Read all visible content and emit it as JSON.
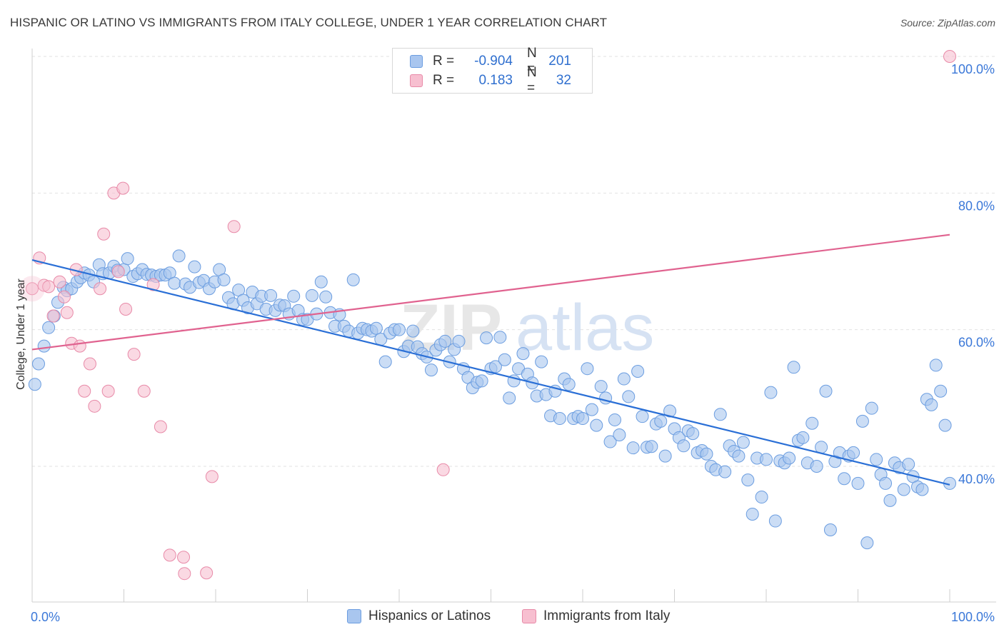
{
  "title": "HISPANIC OR LATINO VS IMMIGRANTS FROM ITALY COLLEGE, UNDER 1 YEAR CORRELATION CHART",
  "source": "Source: ZipAtlas.com",
  "watermark": {
    "part1": "ZIP",
    "part2": "atlas"
  },
  "legend_top": [
    {
      "label": "R =",
      "r": "-0.904",
      "n_label": "N =",
      "n": "201",
      "color": "#a9c6ef",
      "border": "#6b9de0"
    },
    {
      "label": "R =",
      "r": "0.183",
      "n_label": "N =",
      "n": "32",
      "color": "#f7bfd0",
      "border": "#e88aa8"
    }
  ],
  "legend_bottom": [
    {
      "label": "Hispanics or Latinos",
      "color": "#a9c6ef",
      "border": "#6b9de0"
    },
    {
      "label": "Immigrants from Italy",
      "color": "#f7bfd0",
      "border": "#e88aa8"
    }
  ],
  "chart_data": {
    "type": "scatter",
    "title": "HISPANIC OR LATINO VS IMMIGRANTS FROM ITALY COLLEGE, UNDER 1 YEAR CORRELATION CHART",
    "xlabel": "",
    "ylabel": "College, Under 1 year",
    "xlim": [
      0,
      100
    ],
    "ylim": [
      20,
      102
    ],
    "x_tick_labels": [
      "0.0%",
      "100.0%"
    ],
    "y_ticks": [
      40,
      60,
      80,
      100
    ],
    "y_tick_labels": [
      "40.0%",
      "60.0%",
      "80.0%",
      "100.0%"
    ],
    "grid": "horizontal dashed",
    "legend_position": "top-center",
    "series": [
      {
        "name": "Hispanics or Latinos",
        "color": "#6b9de0",
        "fill": "#a9c6ef",
        "trend": {
          "x": [
            0,
            100
          ],
          "y": [
            70.2,
            37.3
          ]
        },
        "points": [
          [
            0.3,
            52
          ],
          [
            0.7,
            55
          ],
          [
            1.3,
            57.6
          ],
          [
            1.8,
            60.3
          ],
          [
            2.4,
            62
          ],
          [
            2.8,
            64
          ],
          [
            3.4,
            66.2
          ],
          [
            3.8,
            65.7
          ],
          [
            4.3,
            66
          ],
          [
            4.9,
            67
          ],
          [
            5.3,
            67.6
          ],
          [
            5.7,
            68.3
          ],
          [
            6.2,
            68
          ],
          [
            6.7,
            67
          ],
          [
            7.3,
            69.5
          ],
          [
            7.7,
            68.2
          ],
          [
            8.4,
            68.3
          ],
          [
            8.9,
            69.3
          ],
          [
            9.3,
            68.7
          ],
          [
            10,
            68.8
          ],
          [
            10.4,
            70.4
          ],
          [
            11,
            67.8
          ],
          [
            11.5,
            68.2
          ],
          [
            12,
            68.8
          ],
          [
            12.5,
            68.1
          ],
          [
            13,
            68
          ],
          [
            13.5,
            67.8
          ],
          [
            14,
            68
          ],
          [
            14.5,
            68
          ],
          [
            15,
            68.3
          ],
          [
            15.5,
            66.8
          ],
          [
            16,
            70.8
          ],
          [
            16.7,
            66.7
          ],
          [
            17.2,
            66.2
          ],
          [
            17.7,
            69.2
          ],
          [
            18.2,
            66.9
          ],
          [
            18.7,
            67.2
          ],
          [
            19.3,
            66
          ],
          [
            19.9,
            67
          ],
          [
            20.4,
            68.8
          ],
          [
            20.9,
            67.3
          ],
          [
            21.4,
            64.7
          ],
          [
            21.9,
            63.8
          ],
          [
            22.5,
            65.8
          ],
          [
            23,
            64.3
          ],
          [
            23.5,
            63.2
          ],
          [
            24,
            65.5
          ],
          [
            24.5,
            63.8
          ],
          [
            25,
            64.9
          ],
          [
            25.5,
            63
          ],
          [
            26,
            65
          ],
          [
            26.5,
            62.8
          ],
          [
            27,
            63.6
          ],
          [
            27.5,
            63.5
          ],
          [
            28,
            62.3
          ],
          [
            28.5,
            64.9
          ],
          [
            29,
            62.8
          ],
          [
            29.5,
            61.5
          ],
          [
            30,
            61.5
          ],
          [
            30.5,
            65
          ],
          [
            31,
            62.3
          ],
          [
            31.5,
            67
          ],
          [
            32,
            64.8
          ],
          [
            32.5,
            62.5
          ],
          [
            33,
            60.5
          ],
          [
            33.5,
            62.2
          ],
          [
            34,
            60.5
          ],
          [
            34.5,
            59.8
          ],
          [
            35,
            67.3
          ],
          [
            35.5,
            59.5
          ],
          [
            36,
            60.2
          ],
          [
            36.5,
            60
          ],
          [
            37,
            59.8
          ],
          [
            37.5,
            60.2
          ],
          [
            38,
            58.6
          ],
          [
            38.5,
            55.3
          ],
          [
            39,
            59.5
          ],
          [
            39.5,
            60
          ],
          [
            40,
            60
          ],
          [
            40.5,
            56.8
          ],
          [
            41,
            57.6
          ],
          [
            41.5,
            59.8
          ],
          [
            42,
            57.5
          ],
          [
            42.5,
            56.5
          ],
          [
            43,
            56
          ],
          [
            43.5,
            54.1
          ],
          [
            44,
            57
          ],
          [
            44.5,
            57.8
          ],
          [
            45,
            58.3
          ],
          [
            45.5,
            55.3
          ],
          [
            46,
            57.1
          ],
          [
            46.5,
            58.3
          ],
          [
            47,
            54.3
          ],
          [
            47.5,
            53
          ],
          [
            48,
            51.5
          ],
          [
            48.5,
            52.3
          ],
          [
            49,
            52.5
          ],
          [
            49.5,
            58.8
          ],
          [
            50,
            54.3
          ],
          [
            50.5,
            54.6
          ],
          [
            51,
            58.9
          ],
          [
            51.5,
            55.6
          ],
          [
            52,
            50
          ],
          [
            52.5,
            52.5
          ],
          [
            53,
            54.3
          ],
          [
            53.5,
            56.5
          ],
          [
            54,
            53.5
          ],
          [
            54.5,
            52.2
          ],
          [
            55,
            50.3
          ],
          [
            55.5,
            55.3
          ],
          [
            56,
            50.5
          ],
          [
            56.5,
            47.4
          ],
          [
            57,
            51
          ],
          [
            57.5,
            47
          ],
          [
            58,
            52.8
          ],
          [
            58.5,
            52
          ],
          [
            59,
            47
          ],
          [
            59.5,
            47.3
          ],
          [
            60,
            47
          ],
          [
            60.5,
            54.3
          ],
          [
            61,
            48.3
          ],
          [
            61.5,
            46
          ],
          [
            62,
            51.7
          ],
          [
            62.5,
            50
          ],
          [
            63,
            43.6
          ],
          [
            63.5,
            46.8
          ],
          [
            64,
            44.6
          ],
          [
            64.5,
            52.8
          ],
          [
            65,
            50.2
          ],
          [
            65.5,
            42.7
          ],
          [
            66,
            53.9
          ],
          [
            66.5,
            47.3
          ],
          [
            67,
            42.8
          ],
          [
            67.5,
            42.9
          ],
          [
            68,
            46.2
          ],
          [
            68.5,
            46.6
          ],
          [
            69,
            41.5
          ],
          [
            69.5,
            48.1
          ],
          [
            70,
            45.5
          ],
          [
            70.5,
            44.2
          ],
          [
            71,
            43
          ],
          [
            71.5,
            45.2
          ],
          [
            72,
            44.8
          ],
          [
            72.5,
            42
          ],
          [
            73,
            42.3
          ],
          [
            73.5,
            41.8
          ],
          [
            74,
            40
          ],
          [
            74.5,
            39.5
          ],
          [
            75,
            47.6
          ],
          [
            75.5,
            39.2
          ],
          [
            76,
            43
          ],
          [
            76.5,
            42.2
          ],
          [
            77,
            41.5
          ],
          [
            77.5,
            43.5
          ],
          [
            78,
            38
          ],
          [
            78.5,
            33
          ],
          [
            79,
            41.2
          ],
          [
            79.5,
            35.5
          ],
          [
            80,
            41
          ],
          [
            80.5,
            50.8
          ],
          [
            81,
            32
          ],
          [
            81.5,
            40.8
          ],
          [
            82,
            40.5
          ],
          [
            82.5,
            41.2
          ],
          [
            83,
            54.5
          ],
          [
            83.5,
            43.8
          ],
          [
            84,
            44.2
          ],
          [
            84.5,
            40.5
          ],
          [
            85,
            46.3
          ],
          [
            85.5,
            40
          ],
          [
            86,
            42.8
          ],
          [
            86.5,
            51
          ],
          [
            87,
            30.7
          ],
          [
            87.5,
            40.7
          ],
          [
            88,
            42
          ],
          [
            88.5,
            38.2
          ],
          [
            89,
            41.5
          ],
          [
            89.5,
            42
          ],
          [
            90,
            37.5
          ],
          [
            90.5,
            46.6
          ],
          [
            91,
            28.8
          ],
          [
            91.5,
            48.5
          ],
          [
            92,
            41
          ],
          [
            92.5,
            38.8
          ],
          [
            93,
            37.5
          ],
          [
            93.5,
            35
          ],
          [
            94,
            40.5
          ],
          [
            94.5,
            39.8
          ],
          [
            95,
            36.6
          ],
          [
            95.5,
            40.3
          ],
          [
            96,
            38.5
          ],
          [
            96.5,
            37
          ],
          [
            97,
            36.6
          ],
          [
            97.5,
            49.8
          ],
          [
            98,
            49
          ],
          [
            98.5,
            54.8
          ],
          [
            99,
            51
          ],
          [
            99.5,
            46
          ],
          [
            100,
            37.5
          ]
        ]
      },
      {
        "name": "Immigrants from Italy",
        "color": "#e88aa8",
        "fill": "#f7bfd0",
        "trend": {
          "x": [
            0,
            100
          ],
          "y": [
            57.1,
            73.9
          ]
        },
        "points": [
          [
            0,
            66
          ],
          [
            0.8,
            70.5
          ],
          [
            1.3,
            66.5
          ],
          [
            1.8,
            66.3
          ],
          [
            2.3,
            62
          ],
          [
            3,
            67
          ],
          [
            3.5,
            64.8
          ],
          [
            3.8,
            62.5
          ],
          [
            4.3,
            58
          ],
          [
            4.8,
            68.8
          ],
          [
            5.2,
            57.6
          ],
          [
            5.7,
            51
          ],
          [
            6.3,
            55
          ],
          [
            6.8,
            48.8
          ],
          [
            7.4,
            66
          ],
          [
            7.8,
            74
          ],
          [
            8.3,
            51
          ],
          [
            8.9,
            80
          ],
          [
            9.4,
            68.5
          ],
          [
            9.9,
            80.7
          ],
          [
            10.2,
            63
          ],
          [
            11.1,
            56.4
          ],
          [
            12.2,
            51
          ],
          [
            13.2,
            66.6
          ],
          [
            14,
            45.8
          ],
          [
            15,
            27
          ],
          [
            16.6,
            24.3
          ],
          [
            16.5,
            26.7
          ],
          [
            19,
            24.4
          ],
          [
            19.6,
            38.5
          ],
          [
            22,
            75.1
          ],
          [
            44.8,
            39.5
          ],
          [
            100,
            100
          ]
        ]
      }
    ]
  }
}
